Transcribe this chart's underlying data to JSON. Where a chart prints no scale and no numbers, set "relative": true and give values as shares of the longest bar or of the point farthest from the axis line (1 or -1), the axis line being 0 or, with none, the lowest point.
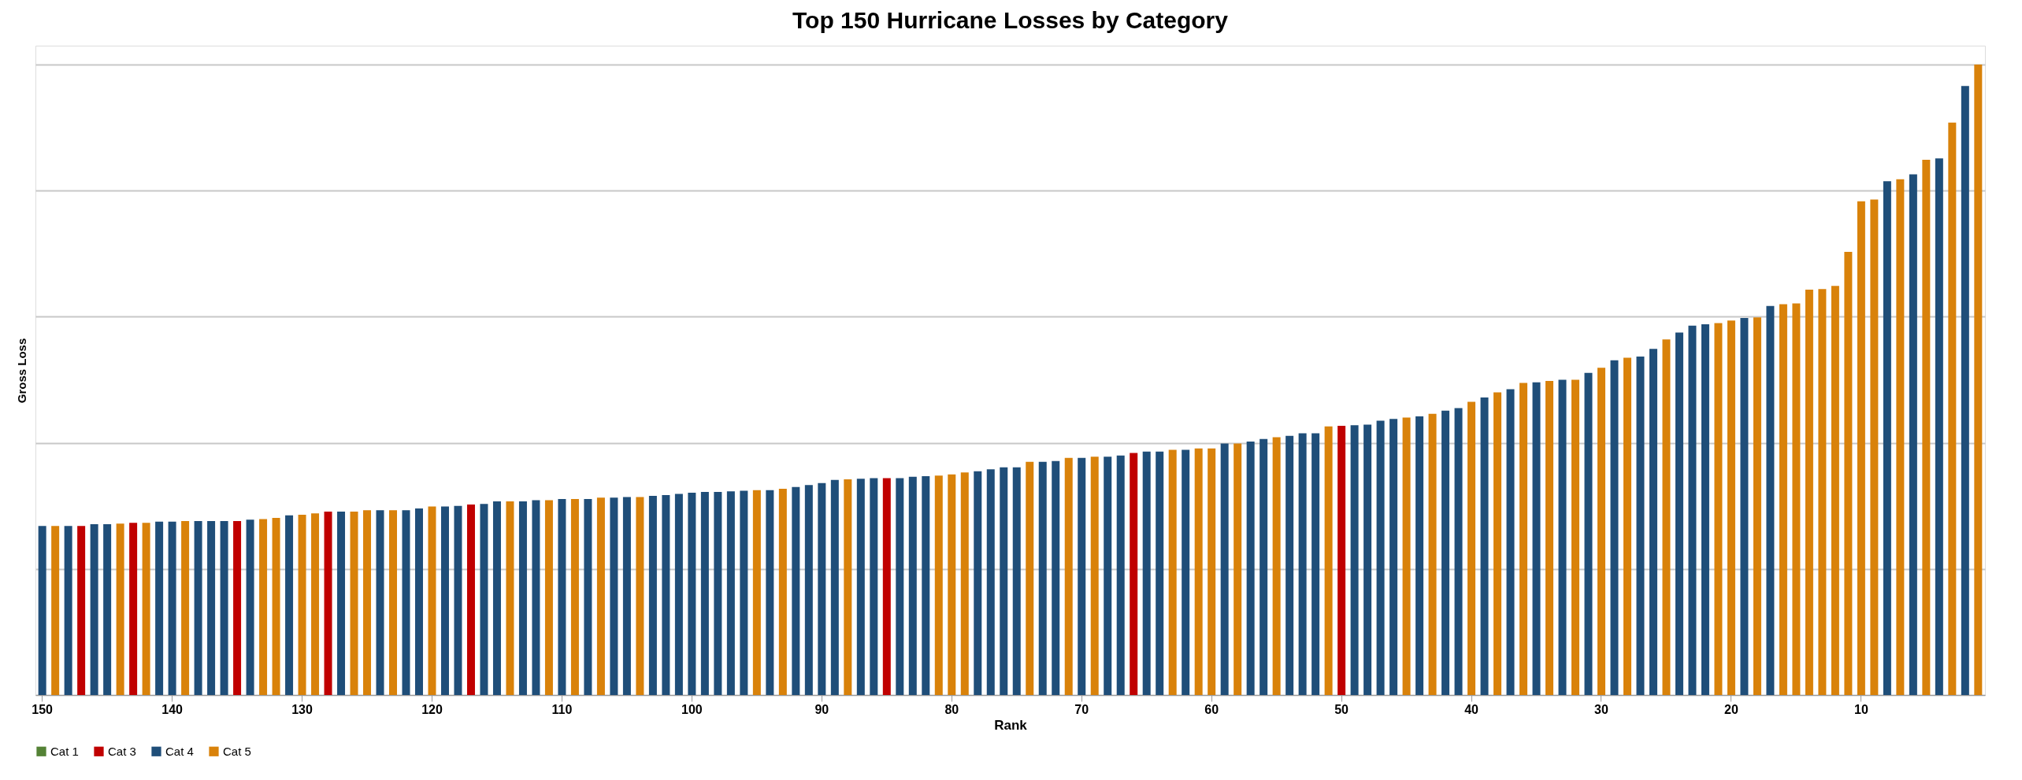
{
  "chart_data": {
    "type": "bar",
    "title": "Top 150 Hurricane Losses by Category",
    "xlabel": "Rank",
    "ylabel": "Gross Loss",
    "relative": true,
    "grid": "y",
    "legend": "bottom",
    "categories": [
      "150",
      null,
      null,
      null,
      null,
      null,
      null,
      null,
      null,
      null,
      "140",
      null,
      null,
      null,
      null,
      null,
      null,
      null,
      null,
      null,
      "130",
      null,
      null,
      null,
      null,
      null,
      null,
      null,
      null,
      null,
      "120",
      null,
      null,
      null,
      null,
      null,
      null,
      null,
      null,
      null,
      "110",
      null,
      null,
      null,
      null,
      null,
      null,
      null,
      null,
      null,
      "100",
      null,
      null,
      null,
      null,
      null,
      null,
      null,
      null,
      null,
      "90",
      null,
      null,
      null,
      null,
      null,
      null,
      null,
      null,
      null,
      "80",
      null,
      null,
      null,
      null,
      null,
      null,
      null,
      null,
      null,
      "70",
      null,
      null,
      null,
      null,
      null,
      null,
      null,
      null,
      null,
      "60",
      null,
      null,
      null,
      null,
      null,
      null,
      null,
      null,
      null,
      "50",
      null,
      null,
      null,
      null,
      null,
      null,
      null,
      null,
      null,
      "40",
      null,
      null,
      null,
      null,
      null,
      null,
      null,
      null,
      null,
      "30",
      null,
      null,
      null,
      null,
      null,
      null,
      null,
      null,
      null,
      "20",
      null,
      null,
      null,
      null,
      null,
      null,
      null,
      null,
      null,
      "10",
      null,
      null,
      null,
      null,
      null,
      null,
      null,
      null,
      null
    ],
    "series": [
      {
        "name": "Cat 1",
        "color": "#548235",
        "values": [
          null,
          null,
          null,
          null,
          null,
          null,
          null,
          null,
          null,
          null,
          null,
          null,
          null,
          null,
          null,
          null,
          null,
          null,
          null,
          null,
          null,
          null,
          null,
          null,
          null,
          null,
          null,
          null,
          null,
          null,
          null,
          null,
          null,
          null,
          null,
          null,
          null,
          null,
          null,
          null,
          null,
          null,
          null,
          null,
          null,
          null,
          null,
          null,
          null,
          null,
          null,
          null,
          null,
          null,
          null,
          null,
          null,
          null,
          null,
          null,
          null,
          null,
          null,
          null,
          null,
          null,
          null,
          null,
          null,
          null,
          null,
          null,
          null,
          null,
          null,
          null,
          null,
          null,
          null,
          null,
          null,
          null,
          null,
          null,
          null,
          null,
          null,
          null,
          null,
          null,
          null,
          null,
          null,
          null,
          null,
          null,
          null,
          null,
          null,
          null,
          null,
          null,
          null,
          null,
          null,
          null,
          null,
          null,
          null,
          null,
          null,
          null,
          null,
          null,
          null,
          null,
          null,
          null,
          null,
          null,
          null,
          null,
          null,
          null,
          null,
          null,
          null,
          null,
          null,
          null,
          null,
          null,
          null,
          null,
          null,
          null,
          null,
          null,
          null,
          null,
          null,
          null,
          null,
          null,
          null,
          null,
          null,
          null,
          null,
          null
        ]
      },
      {
        "name": "Cat 3",
        "color": "#c00000",
        "values": [
          null,
          null,
          null,
          0.268,
          null,
          null,
          null,
          0.273,
          null,
          null,
          null,
          null,
          null,
          null,
          null,
          0.276,
          null,
          null,
          null,
          null,
          null,
          null,
          0.291,
          null,
          null,
          null,
          null,
          null,
          null,
          null,
          null,
          null,
          null,
          0.302,
          null,
          null,
          null,
          null,
          null,
          null,
          null,
          null,
          null,
          null,
          null,
          null,
          null,
          null,
          null,
          null,
          null,
          null,
          null,
          null,
          null,
          null,
          null,
          null,
          null,
          null,
          null,
          null,
          null,
          null,
          null,
          0.344,
          null,
          null,
          null,
          null,
          null,
          null,
          null,
          null,
          null,
          null,
          null,
          null,
          null,
          null,
          null,
          null,
          null,
          null,
          0.384,
          null,
          null,
          null,
          null,
          null,
          null,
          null,
          null,
          null,
          null,
          null,
          null,
          null,
          null,
          null,
          0.427,
          null,
          null,
          null,
          null,
          null,
          null,
          null,
          null,
          null,
          null,
          null,
          null,
          null,
          null,
          null,
          null,
          null,
          null,
          null,
          null,
          null,
          null,
          null,
          null,
          null,
          null,
          null,
          null,
          null,
          null,
          null,
          null,
          null,
          null,
          null,
          null,
          null,
          null,
          null,
          null,
          null,
          null,
          null,
          null,
          null,
          null,
          null,
          null,
          null
        ]
      },
      {
        "name": "Cat 4",
        "color": "#1f4e79",
        "values": [
          0.268,
          null,
          0.268,
          null,
          0.271,
          0.271,
          null,
          null,
          null,
          0.275,
          0.275,
          null,
          0.276,
          0.276,
          0.276,
          null,
          0.278,
          null,
          null,
          0.285,
          null,
          null,
          null,
          0.291,
          null,
          null,
          0.293,
          null,
          0.293,
          0.296,
          null,
          0.299,
          0.3,
          null,
          0.303,
          0.307,
          null,
          0.307,
          0.309,
          null,
          0.311,
          null,
          0.311,
          null,
          0.313,
          0.314,
          null,
          0.316,
          0.317,
          0.319,
          0.321,
          0.322,
          0.322,
          0.323,
          0.324,
          null,
          0.325,
          null,
          0.33,
          0.333,
          0.336,
          0.341,
          null,
          0.343,
          0.344,
          null,
          0.344,
          0.346,
          0.347,
          null,
          null,
          null,
          0.355,
          0.358,
          0.361,
          0.361,
          null,
          0.37,
          0.371,
          null,
          0.376,
          null,
          0.378,
          0.38,
          null,
          0.386,
          0.386,
          null,
          0.389,
          null,
          null,
          0.399,
          null,
          0.402,
          0.406,
          null,
          0.411,
          0.415,
          0.415,
          null,
          null,
          0.428,
          0.429,
          0.435,
          0.438,
          null,
          0.442,
          null,
          0.451,
          0.455,
          null,
          0.472,
          null,
          0.485,
          null,
          0.496,
          null,
          0.5,
          null,
          0.511,
          null,
          0.531,
          null,
          0.537,
          0.549,
          null,
          0.575,
          0.586,
          0.588,
          null,
          null,
          0.598,
          null,
          0.617,
          null,
          null,
          null,
          null,
          null,
          null,
          null,
          null,
          0.815,
          null,
          0.826,
          null,
          0.851,
          null,
          0.966,
          null
        ]
      },
      {
        "name": "Cat 5",
        "color": "#d9820a",
        "values": [
          null,
          0.268,
          null,
          null,
          null,
          null,
          0.272,
          null,
          0.273,
          null,
          null,
          0.276,
          null,
          null,
          null,
          null,
          null,
          0.279,
          0.281,
          null,
          0.286,
          0.288,
          null,
          null,
          0.291,
          0.293,
          null,
          0.293,
          null,
          null,
          0.299,
          null,
          null,
          null,
          null,
          null,
          0.307,
          null,
          null,
          0.309,
          null,
          0.311,
          null,
          0.313,
          null,
          null,
          0.314,
          null,
          null,
          null,
          null,
          null,
          null,
          null,
          null,
          0.325,
          null,
          0.327,
          null,
          null,
          null,
          null,
          0.342,
          null,
          null,
          null,
          null,
          null,
          null,
          0.348,
          0.35,
          0.353,
          null,
          null,
          null,
          null,
          0.37,
          null,
          null,
          0.376,
          null,
          0.378,
          null,
          null,
          null,
          null,
          null,
          0.389,
          null,
          0.391,
          0.391,
          null,
          0.399,
          null,
          null,
          0.409,
          null,
          null,
          null,
          0.426,
          null,
          null,
          null,
          null,
          null,
          0.44,
          null,
          0.446,
          null,
          null,
          0.465,
          null,
          0.48,
          null,
          0.495,
          null,
          0.498,
          null,
          0.5,
          null,
          0.519,
          null,
          0.535,
          null,
          null,
          0.564,
          null,
          null,
          null,
          0.59,
          0.594,
          null,
          0.599,
          null,
          0.62,
          0.621,
          0.643,
          0.644,
          0.649,
          0.703,
          0.783,
          0.786,
          null,
          0.818,
          null,
          0.849,
          null,
          0.908,
          null,
          1
        ]
      }
    ]
  }
}
